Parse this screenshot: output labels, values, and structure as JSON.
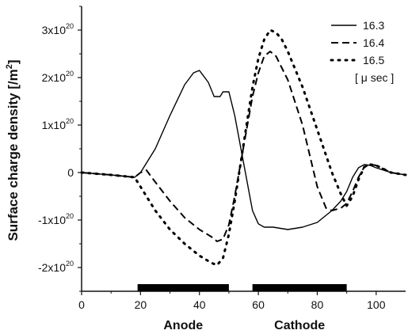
{
  "chart_data": {
    "type": "line",
    "title": "",
    "xlabel": "",
    "ylabel": "Surface charge density [/m",
    "ylabel_exp": "2",
    "ylabel_close": "]",
    "xlim": [
      0,
      110
    ],
    "ylim": [
      -2.5,
      3.5
    ],
    "y_unit_exponent": 20,
    "x_ticks": [
      {
        "value": 0,
        "label": "0"
      },
      {
        "value": 20,
        "label": "20"
      },
      {
        "value": 40,
        "label": "40"
      },
      {
        "value": 60,
        "label": "60"
      },
      {
        "value": 80,
        "label": "80"
      },
      {
        "value": 100,
        "label": "100"
      }
    ],
    "y_ticks": [
      {
        "value": 3,
        "base": "3x10",
        "exp": "20"
      },
      {
        "value": 2,
        "base": "2x10",
        "exp": "20"
      },
      {
        "value": 1,
        "base": "1x10",
        "exp": "20"
      },
      {
        "value": 0,
        "base": "0",
        "exp": ""
      },
      {
        "value": -1,
        "base": "-1x10",
        "exp": "20"
      },
      {
        "value": -2,
        "base": "-2x10",
        "exp": "20"
      }
    ],
    "legend": {
      "placement": "top-right",
      "unit_note": "[ μ sec ]"
    },
    "electrodes": [
      {
        "name": "Anode",
        "x_start": 19,
        "x_end": 50
      },
      {
        "name": "Cathode",
        "x_start": 58,
        "x_end": 90
      }
    ],
    "series": [
      {
        "name": "16.3",
        "style": "solid",
        "x": [
          0,
          10,
          18,
          20,
          25,
          30,
          35,
          38,
          40,
          43,
          45,
          47,
          48,
          50,
          52,
          55,
          58,
          60,
          62,
          65,
          70,
          75,
          80,
          85,
          88,
          90,
          92,
          94,
          96,
          98,
          100,
          105,
          110
        ],
        "y": [
          0,
          -0.05,
          -0.1,
          0.0,
          0.5,
          1.2,
          1.85,
          2.1,
          2.15,
          1.9,
          1.6,
          1.6,
          1.7,
          1.7,
          1.2,
          0.2,
          -0.8,
          -1.08,
          -1.15,
          -1.15,
          -1.2,
          -1.15,
          -1.05,
          -0.8,
          -0.6,
          -0.4,
          -0.1,
          0.1,
          0.17,
          0.15,
          0.1,
          0.0,
          -0.05
        ]
      },
      {
        "name": "16.4",
        "style": "dashed",
        "x": [
          0,
          10,
          18,
          20,
          22,
          25,
          30,
          35,
          40,
          44,
          46,
          48,
          50,
          52,
          54,
          56,
          58,
          60,
          62,
          64,
          66,
          70,
          75,
          80,
          83,
          85,
          88,
          90,
          92,
          94,
          96,
          98,
          100,
          105,
          110
        ],
        "y": [
          0,
          -0.05,
          -0.1,
          0.0,
          0.05,
          -0.2,
          -0.6,
          -0.95,
          -1.2,
          -1.35,
          -1.45,
          -1.4,
          -1.1,
          -0.5,
          0.2,
          0.9,
          1.6,
          2.1,
          2.45,
          2.55,
          2.45,
          1.95,
          1.0,
          -0.3,
          -0.75,
          -0.8,
          -0.75,
          -0.65,
          -0.4,
          -0.1,
          0.12,
          0.17,
          0.15,
          0.0,
          -0.05
        ]
      },
      {
        "name": "16.5",
        "style": "dotted",
        "x": [
          0,
          10,
          18,
          20,
          25,
          30,
          35,
          40,
          44,
          46,
          48,
          50,
          52,
          54,
          56,
          58,
          60,
          62,
          64,
          66,
          68,
          70,
          75,
          80,
          85,
          88,
          90,
          92,
          94,
          96,
          98,
          100,
          105,
          110
        ],
        "y": [
          0,
          -0.05,
          -0.1,
          -0.3,
          -0.8,
          -1.2,
          -1.5,
          -1.75,
          -1.9,
          -1.95,
          -1.8,
          -1.3,
          -0.6,
          0.2,
          1.0,
          1.8,
          2.4,
          2.8,
          3.0,
          2.95,
          2.8,
          2.55,
          1.8,
          0.9,
          0.0,
          -0.45,
          -0.7,
          -0.5,
          -0.15,
          0.12,
          0.17,
          0.15,
          0.0,
          -0.05
        ]
      }
    ]
  }
}
